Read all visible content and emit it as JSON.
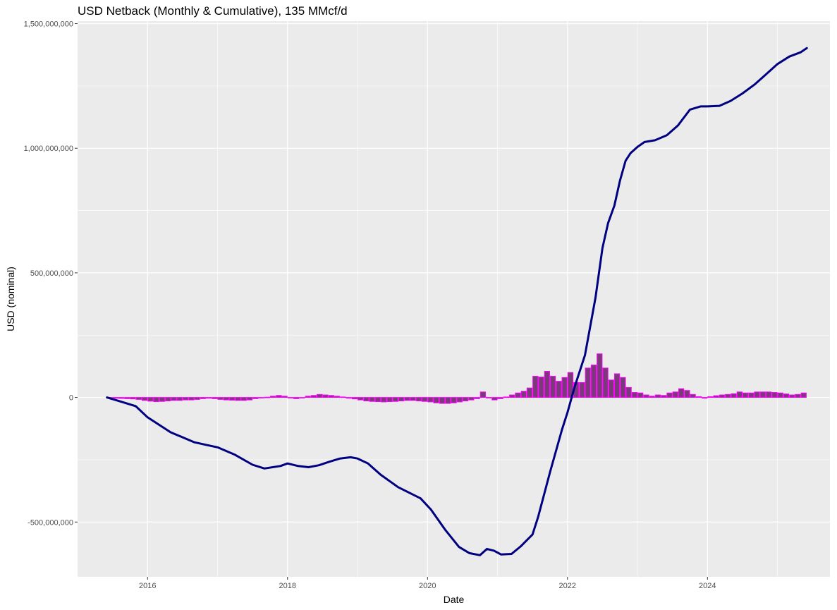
{
  "chart_data": {
    "type": "bar+line",
    "title": "USD Netback (Monthly & Cumulative), 135 MMcf/d",
    "xlabel": "Date",
    "ylabel": "USD (nominal)",
    "xlim": [
      2015.0,
      2025.75
    ],
    "ylim": [
      -720000000,
      1510000000
    ],
    "x_ticks": [
      2016,
      2018,
      2020,
      2022,
      2024
    ],
    "x_tick_labels": [
      "2016",
      "2018",
      "2020",
      "2022",
      "2024"
    ],
    "y_ticks": [
      -500000000,
      0,
      500000000,
      1000000000,
      1500000000
    ],
    "y_tick_labels": [
      "-500,000,000",
      "0",
      "500,000,000",
      "1,000,000,000",
      "1,500,000,000"
    ],
    "grid": true,
    "colors": {
      "panel": "#ebebeb",
      "grid": "#ffffff",
      "bar_fill": "#7a3a7a",
      "bar_outline": "#ff00ff",
      "line": "#000080"
    },
    "series": [
      {
        "type": "bar",
        "start": "2015-06",
        "frequency": "monthly",
        "values": [
          -2,
          -3,
          -4,
          -5,
          -6,
          -8,
          -12,
          -15,
          -17,
          -16,
          -14,
          -12,
          -12,
          -10,
          -10,
          -8,
          -5,
          -3,
          -5,
          -8,
          -10,
          -11,
          -12,
          -12,
          -10,
          -5,
          -2,
          1,
          5,
          8,
          5,
          -2,
          -5,
          0,
          5,
          8,
          12,
          10,
          8,
          5,
          2,
          -3,
          -6,
          -10,
          -14,
          -16,
          -17,
          -18,
          -17,
          -16,
          -14,
          -12,
          -12,
          -14,
          -16,
          -18,
          -22,
          -24,
          -24,
          -22,
          -18,
          -14,
          -10,
          -5,
          22,
          0,
          -10,
          -5,
          2,
          10,
          18,
          25,
          38,
          85,
          82,
          105,
          85,
          65,
          80,
          100,
          60,
          60,
          118,
          130,
          175,
          118,
          70,
          95,
          80,
          40,
          20,
          18,
          10,
          5,
          10,
          8,
          18,
          22,
          35,
          28,
          12,
          3,
          -3,
          3,
          7,
          10,
          12,
          15,
          22,
          18,
          18,
          22,
          22,
          22,
          20,
          18,
          14,
          10,
          12,
          18
        ]
      },
      {
        "type": "line",
        "name": "",
        "points": [
          [
            2015.42,
            0
          ],
          [
            2015.6,
            -15
          ],
          [
            2015.83,
            -35
          ],
          [
            2016.0,
            -80
          ],
          [
            2016.33,
            -140
          ],
          [
            2016.67,
            -180
          ],
          [
            2016.83,
            -190
          ],
          [
            2017.0,
            -200
          ],
          [
            2017.25,
            -230
          ],
          [
            2017.5,
            -270
          ],
          [
            2017.67,
            -285
          ],
          [
            2017.9,
            -275
          ],
          [
            2018.0,
            -265
          ],
          [
            2018.15,
            -275
          ],
          [
            2018.3,
            -280
          ],
          [
            2018.45,
            -272
          ],
          [
            2018.6,
            -258
          ],
          [
            2018.75,
            -245
          ],
          [
            2018.9,
            -240
          ],
          [
            2019.0,
            -245
          ],
          [
            2019.15,
            -265
          ],
          [
            2019.33,
            -310
          ],
          [
            2019.58,
            -360
          ],
          [
            2019.9,
            -405
          ],
          [
            2020.05,
            -450
          ],
          [
            2020.25,
            -530
          ],
          [
            2020.45,
            -600
          ],
          [
            2020.6,
            -625
          ],
          [
            2020.75,
            -633
          ],
          [
            2020.85,
            -608
          ],
          [
            2020.95,
            -615
          ],
          [
            2021.05,
            -630
          ],
          [
            2021.2,
            -628
          ],
          [
            2021.33,
            -598
          ],
          [
            2021.5,
            -550
          ],
          [
            2021.58,
            -480
          ],
          [
            2021.75,
            -300
          ],
          [
            2021.92,
            -130
          ],
          [
            2022.0,
            -60
          ],
          [
            2022.1,
            40
          ],
          [
            2022.25,
            170
          ],
          [
            2022.4,
            400
          ],
          [
            2022.5,
            600
          ],
          [
            2022.58,
            700
          ],
          [
            2022.67,
            770
          ],
          [
            2022.75,
            870
          ],
          [
            2022.83,
            950
          ],
          [
            2022.9,
            980
          ],
          [
            2023.0,
            1005
          ],
          [
            2023.1,
            1025
          ],
          [
            2023.25,
            1032
          ],
          [
            2023.42,
            1052
          ],
          [
            2023.58,
            1092
          ],
          [
            2023.75,
            1155
          ],
          [
            2023.9,
            1168
          ],
          [
            2024.0,
            1168
          ],
          [
            2024.17,
            1170
          ],
          [
            2024.33,
            1190
          ],
          [
            2024.5,
            1220
          ],
          [
            2024.67,
            1255
          ],
          [
            2024.83,
            1295
          ],
          [
            2025.0,
            1338
          ],
          [
            2025.17,
            1368
          ],
          [
            2025.33,
            1385
          ],
          [
            2025.42,
            1402
          ]
        ]
      }
    ],
    "units_note_scale": 1000000
  }
}
